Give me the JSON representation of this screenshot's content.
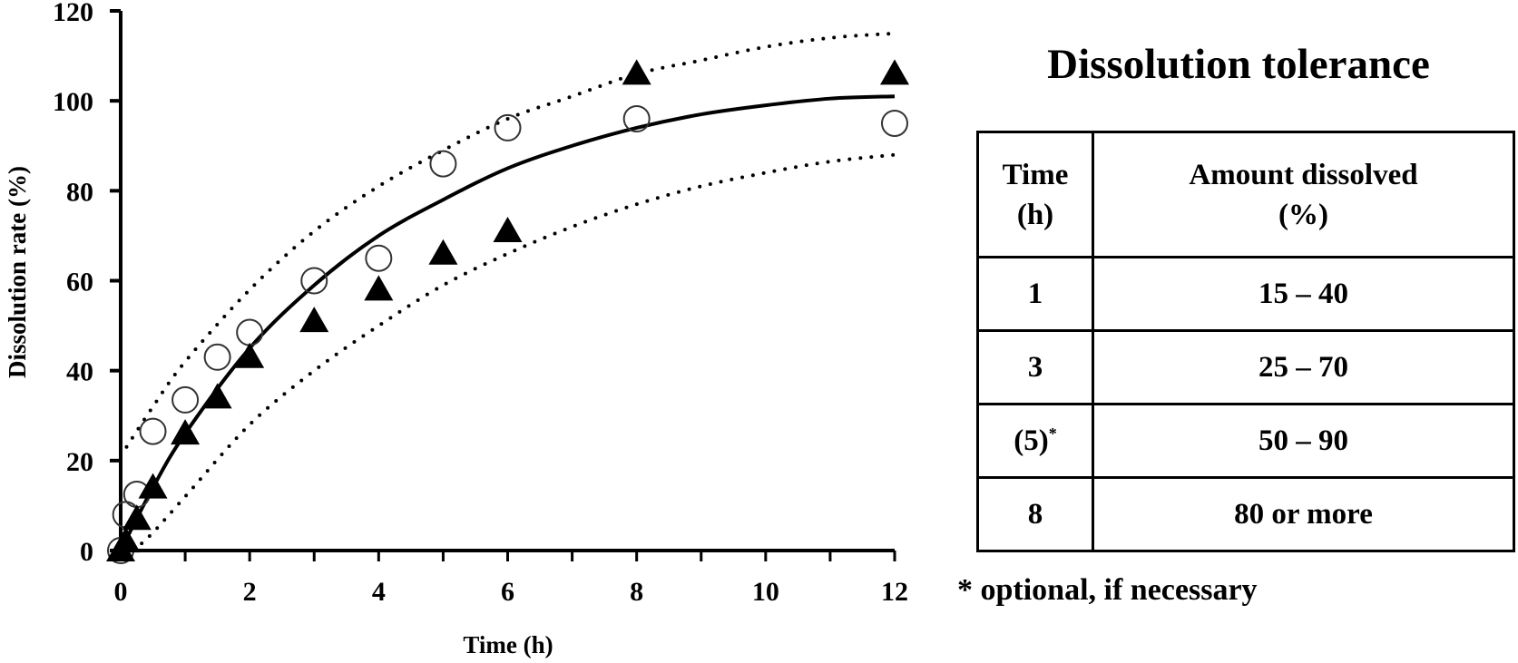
{
  "chart_data": {
    "type": "scatter",
    "title": "",
    "xlabel": "Time (h)",
    "ylabel": "Dissolution rate (%)",
    "xlim": [
      0,
      12
    ],
    "ylim": [
      0,
      120
    ],
    "x_ticks": [
      0,
      2,
      4,
      6,
      8,
      10,
      12
    ],
    "x_minor_ticks": [
      1,
      3,
      5,
      7,
      9,
      11
    ],
    "y_ticks": [
      0,
      20,
      40,
      60,
      80,
      100,
      120
    ],
    "grid": false,
    "series": [
      {
        "name": "open-circles",
        "marker": "circle-open",
        "points": [
          [
            0,
            0
          ],
          [
            0.08,
            8
          ],
          [
            0.25,
            12.5
          ],
          [
            0.5,
            26.5
          ],
          [
            1,
            33.5
          ],
          [
            1.5,
            43
          ],
          [
            2,
            48.5
          ],
          [
            3,
            60
          ],
          [
            4,
            65
          ],
          [
            5,
            86
          ],
          [
            6,
            94
          ],
          [
            8,
            96
          ],
          [
            12,
            95
          ]
        ]
      },
      {
        "name": "filled-triangles",
        "marker": "triangle-filled",
        "points": [
          [
            0,
            0
          ],
          [
            0.08,
            2
          ],
          [
            0.25,
            7
          ],
          [
            0.5,
            14
          ],
          [
            1,
            26
          ],
          [
            1.5,
            34
          ],
          [
            2,
            43
          ],
          [
            3,
            51
          ],
          [
            4,
            58
          ],
          [
            5,
            66
          ],
          [
            6,
            71
          ],
          [
            8,
            106
          ],
          [
            12,
            106
          ]
        ]
      },
      {
        "name": "fitted-curve",
        "style": "solid",
        "points": [
          [
            0,
            0
          ],
          [
            0.5,
            14
          ],
          [
            1,
            26
          ],
          [
            2,
            45
          ],
          [
            3,
            59
          ],
          [
            4,
            70
          ],
          [
            5,
            78
          ],
          [
            6,
            85
          ],
          [
            7,
            90
          ],
          [
            8,
            94
          ],
          [
            9,
            97
          ],
          [
            10,
            99
          ],
          [
            11,
            100.5
          ],
          [
            12,
            101
          ]
        ]
      },
      {
        "name": "upper-limit",
        "style": "dotted",
        "points": [
          [
            0,
            21
          ],
          [
            0.5,
            32
          ],
          [
            1,
            42
          ],
          [
            2,
            58
          ],
          [
            3,
            71
          ],
          [
            4,
            81
          ],
          [
            5,
            89
          ],
          [
            6,
            96
          ],
          [
            7,
            101
          ],
          [
            8,
            106
          ],
          [
            9,
            109
          ],
          [
            10,
            112
          ],
          [
            11,
            114
          ],
          [
            12,
            115
          ]
        ]
      },
      {
        "name": "lower-limit",
        "style": "dotted",
        "points": [
          [
            0.2,
            0
          ],
          [
            0.5,
            4
          ],
          [
            1,
            12
          ],
          [
            2,
            28
          ],
          [
            3,
            40
          ],
          [
            4,
            50
          ],
          [
            5,
            59
          ],
          [
            6,
            66
          ],
          [
            7,
            72
          ],
          [
            8,
            77
          ],
          [
            9,
            81
          ],
          [
            10,
            84
          ],
          [
            11,
            86.5
          ],
          [
            12,
            88
          ]
        ]
      }
    ]
  },
  "tolerance": {
    "title": "Dissolution tolerance",
    "headers": [
      [
        "Time",
        "(h)"
      ],
      [
        "Amount dissolved",
        "(%)"
      ]
    ],
    "rows": [
      {
        "time": "1",
        "sup": "",
        "amount": "15 – 40"
      },
      {
        "time": "3",
        "sup": "",
        "amount": "25 – 70"
      },
      {
        "time": "(5)",
        "sup": "*",
        "amount": "50 – 90"
      },
      {
        "time": "8",
        "sup": "",
        "amount": "80 or more"
      }
    ],
    "footnote": "* optional, if necessary"
  }
}
